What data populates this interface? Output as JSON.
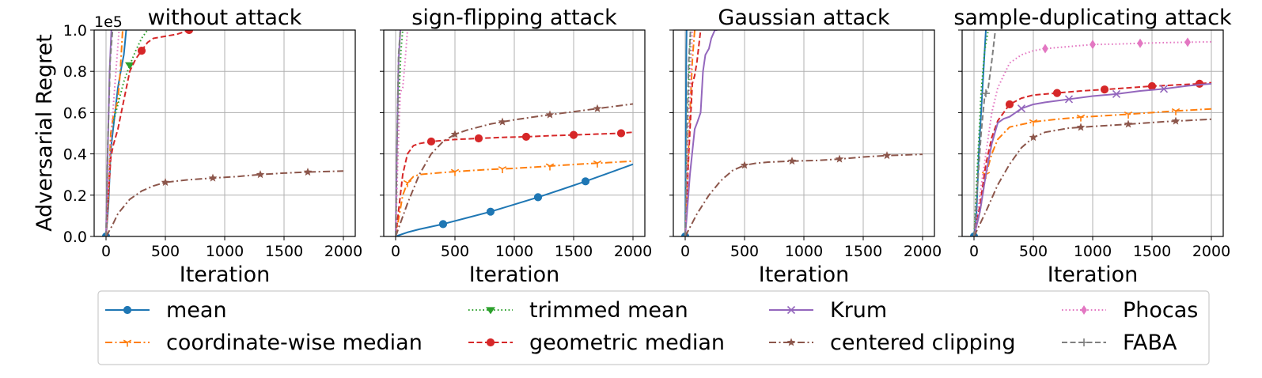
{
  "figure": {
    "ylabel": "Adversarial Regret",
    "xlabel": "Iteration",
    "y_multiplier": "1e5"
  },
  "legend": {
    "placement": "bottom",
    "entries": [
      {
        "label": "mean",
        "color": "#1f77b4",
        "dash": "solid",
        "marker": "circle"
      },
      {
        "label": "coordinate-wise median",
        "color": "#ff7f0e",
        "dash": "dashdot",
        "marker": "tri_down"
      },
      {
        "label": "trimmed mean",
        "color": "#2ca02c",
        "dash": "dotted",
        "marker": "triangle_down"
      },
      {
        "label": "geometric median",
        "color": "#d62728",
        "dash": "dashed",
        "marker": "circle"
      },
      {
        "label": "Krum",
        "color": "#9467bd",
        "dash": "solid",
        "marker": "x"
      },
      {
        "label": "centered clipping",
        "color": "#8c564b",
        "dash": "dashdot",
        "marker": "star"
      },
      {
        "label": "Phocas",
        "color": "#e377c2",
        "dash": "dotted",
        "marker": "diamond"
      },
      {
        "label": "FABA",
        "color": "#7f7f7f",
        "dash": "dashed",
        "marker": "plus"
      }
    ]
  },
  "chart_data": [
    {
      "type": "line",
      "title": "without attack",
      "xlabel": "Iteration",
      "ylabel": "Adversarial Regret",
      "xlim": [
        -100,
        2100
      ],
      "ylim": [
        0,
        1.0
      ],
      "xticks": [
        0,
        500,
        1000,
        1500,
        2000
      ],
      "yticks": [
        0.0,
        0.2,
        0.4,
        0.6,
        0.8,
        1.0
      ],
      "grid": true,
      "series": [
        {
          "name": "mean",
          "x": [
            0,
            20,
            40,
            60,
            80,
            100,
            130,
            150,
            170
          ],
          "y": [
            0,
            0.15,
            0.42,
            0.52,
            0.62,
            0.72,
            0.82,
            0.88,
            1.0
          ],
          "markers_x": [
            0
          ]
        },
        {
          "name": "coordinate-wise median",
          "x": [
            0,
            20,
            40,
            60,
            80,
            100,
            120,
            140
          ],
          "y": [
            0,
            0.2,
            0.5,
            0.58,
            0.62,
            0.66,
            0.8,
            1.0
          ],
          "markers_x": []
        },
        {
          "name": "trimmed mean",
          "x": [
            0,
            20,
            40,
            60,
            100,
            150,
            200,
            250,
            300,
            350
          ],
          "y": [
            0,
            0.18,
            0.45,
            0.55,
            0.64,
            0.75,
            0.83,
            0.9,
            0.96,
            1.0
          ],
          "markers_x": [
            200
          ]
        },
        {
          "name": "geometric median",
          "x": [
            0,
            20,
            40,
            60,
            100,
            150,
            200,
            250,
            300,
            350,
            400,
            500,
            600,
            700,
            720
          ],
          "y": [
            0,
            0.2,
            0.38,
            0.44,
            0.52,
            0.66,
            0.8,
            0.86,
            0.9,
            0.94,
            0.96,
            0.97,
            0.98,
            1.0,
            1.0
          ],
          "markers_x": [
            300,
            700
          ]
        },
        {
          "name": "Krum",
          "x": [
            0,
            10,
            30,
            45
          ],
          "y": [
            0,
            0.3,
            0.8,
            1.0
          ],
          "markers_x": []
        },
        {
          "name": "centered clipping",
          "x": [
            0,
            50,
            100,
            200,
            300,
            400,
            500,
            700,
            900,
            1100,
            1300,
            1500,
            1700,
            2000
          ],
          "y": [
            0,
            0.05,
            0.11,
            0.18,
            0.22,
            0.245,
            0.262,
            0.275,
            0.283,
            0.29,
            0.3,
            0.307,
            0.312,
            0.317
          ],
          "markers_x": [
            500,
            900,
            1300,
            1700
          ]
        },
        {
          "name": "Phocas",
          "x": [
            0,
            30,
            60,
            90,
            110
          ],
          "y": [
            0,
            0.35,
            0.62,
            0.85,
            1.0
          ],
          "markers_x": []
        },
        {
          "name": "FABA",
          "x": [
            0,
            15,
            35,
            55
          ],
          "y": [
            0,
            0.45,
            0.85,
            1.0
          ],
          "markers_x": []
        }
      ]
    },
    {
      "type": "line",
      "title": "sign-flipping attack",
      "xlabel": "Iteration",
      "ylabel": "",
      "xlim": [
        -100,
        2100
      ],
      "ylim": [
        0,
        1.0
      ],
      "xticks": [
        0,
        500,
        1000,
        1500,
        2000
      ],
      "yticks": [
        0.0,
        0.2,
        0.4,
        0.6,
        0.8,
        1.0
      ],
      "grid": true,
      "series": [
        {
          "name": "mean",
          "x": [
            0,
            100,
            200,
            400,
            600,
            800,
            1000,
            1200,
            1400,
            1600,
            1800,
            2000
          ],
          "y": [
            0,
            0.02,
            0.035,
            0.06,
            0.09,
            0.12,
            0.155,
            0.19,
            0.228,
            0.267,
            0.308,
            0.35
          ],
          "markers_x": [
            400,
            800,
            1200,
            1600
          ]
        },
        {
          "name": "coordinate-wise median",
          "x": [
            0,
            30,
            60,
            100,
            150,
            200,
            400,
            600,
            800,
            1000,
            1200,
            1400,
            1600,
            1800,
            2000
          ],
          "y": [
            0,
            0.1,
            0.2,
            0.26,
            0.29,
            0.3,
            0.31,
            0.318,
            0.325,
            0.33,
            0.337,
            0.345,
            0.352,
            0.358,
            0.365
          ],
          "markers_x": [
            100,
            500,
            900,
            1300,
            1700
          ]
        },
        {
          "name": "trimmed mean",
          "x": [
            0,
            15,
            30,
            45,
            60
          ],
          "y": [
            0,
            0.35,
            0.7,
            0.9,
            1.0
          ],
          "markers_x": []
        },
        {
          "name": "geometric median",
          "x": [
            0,
            30,
            60,
            100,
            150,
            200,
            300,
            500,
            700,
            900,
            1100,
            1300,
            1500,
            1700,
            1900,
            2000
          ],
          "y": [
            0,
            0.15,
            0.3,
            0.4,
            0.44,
            0.45,
            0.46,
            0.47,
            0.475,
            0.48,
            0.483,
            0.488,
            0.492,
            0.496,
            0.5,
            0.505
          ],
          "markers_x": [
            300,
            700,
            1100,
            1500,
            1900
          ]
        },
        {
          "name": "Krum",
          "x": [
            0,
            10,
            25,
            40
          ],
          "y": [
            0,
            0.4,
            0.85,
            1.0
          ],
          "markers_x": []
        },
        {
          "name": "centered clipping",
          "x": [
            0,
            50,
            100,
            200,
            300,
            400,
            500,
            600,
            800,
            1000,
            1200,
            1400,
            1600,
            1800,
            2000
          ],
          "y": [
            0,
            0.08,
            0.16,
            0.3,
            0.4,
            0.46,
            0.495,
            0.515,
            0.545,
            0.565,
            0.582,
            0.597,
            0.612,
            0.627,
            0.642
          ],
          "markers_x": [
            500,
            900,
            1300,
            1700
          ]
        },
        {
          "name": "Phocas",
          "x": [
            0,
            20,
            40,
            60,
            80,
            100
          ],
          "y": [
            0,
            0.4,
            0.7,
            0.72,
            0.85,
            1.0
          ],
          "markers_x": []
        },
        {
          "name": "FABA",
          "x": [
            0,
            12,
            25,
            40
          ],
          "y": [
            0,
            0.45,
            0.88,
            1.0
          ],
          "markers_x": []
        }
      ]
    },
    {
      "type": "line",
      "title": "Gaussian attack",
      "xlabel": "Iteration",
      "ylabel": "",
      "xlim": [
        -100,
        2100
      ],
      "ylim": [
        0,
        1.0
      ],
      "xticks": [
        0,
        500,
        1000,
        1500,
        2000
      ],
      "yticks": [
        0.0,
        0.2,
        0.4,
        0.6,
        0.8,
        1.0
      ],
      "grid": true,
      "series": [
        {
          "name": "mean",
          "x": [
            0,
            4,
            8,
            12
          ],
          "y": [
            0,
            0.4,
            0.8,
            1.0
          ],
          "markers_x": [
            0
          ]
        },
        {
          "name": "coordinate-wise median",
          "x": [
            0,
            20,
            40,
            60,
            80
          ],
          "y": [
            0,
            0.3,
            0.6,
            0.85,
            1.0
          ],
          "markers_x": []
        },
        {
          "name": "trimmed mean",
          "x": [
            0,
            15,
            30,
            45
          ],
          "y": [
            0,
            0.35,
            0.75,
            1.0
          ],
          "markers_x": []
        },
        {
          "name": "geometric median",
          "x": [
            0,
            30,
            60,
            80,
            100,
            130
          ],
          "y": [
            0,
            0.4,
            0.74,
            0.78,
            0.85,
            1.0
          ],
          "markers_x": []
        },
        {
          "name": "Krum",
          "x": [
            0,
            40,
            80,
            100,
            130,
            150,
            170,
            200,
            220,
            250,
            270
          ],
          "y": [
            0,
            0.3,
            0.52,
            0.55,
            0.6,
            0.8,
            0.88,
            0.91,
            0.96,
            1.0,
            1.0
          ],
          "markers_x": []
        },
        {
          "name": "centered clipping",
          "x": [
            0,
            100,
            200,
            300,
            400,
            500,
            600,
            700,
            900,
            1100,
            1300,
            1500,
            1700,
            1900,
            2000
          ],
          "y": [
            0,
            0.11,
            0.2,
            0.27,
            0.32,
            0.345,
            0.355,
            0.36,
            0.365,
            0.368,
            0.375,
            0.385,
            0.392,
            0.396,
            0.398
          ],
          "markers_x": [
            500,
            900,
            1300,
            1700
          ]
        },
        {
          "name": "Phocas",
          "x": [
            0,
            20,
            40,
            60
          ],
          "y": [
            0,
            0.35,
            0.7,
            1.0
          ],
          "markers_x": []
        },
        {
          "name": "FABA",
          "x": [
            0,
            15,
            30,
            45
          ],
          "y": [
            0,
            0.5,
            0.85,
            1.0
          ],
          "markers_x": []
        }
      ]
    },
    {
      "type": "line",
      "title": "sample-duplicating attack",
      "xlabel": "Iteration",
      "ylabel": "",
      "xlim": [
        -100,
        2100
      ],
      "ylim": [
        0,
        1.0
      ],
      "xticks": [
        0,
        500,
        1000,
        1500,
        2000
      ],
      "yticks": [
        0.0,
        0.2,
        0.4,
        0.6,
        0.8,
        1.0
      ],
      "grid": true,
      "series": [
        {
          "name": "mean",
          "x": [
            0,
            20,
            40,
            60,
            80,
            100
          ],
          "y": [
            0,
            0.1,
            0.4,
            0.6,
            0.8,
            1.0
          ],
          "markers_x": [
            0
          ]
        },
        {
          "name": "coordinate-wise median",
          "x": [
            0,
            50,
            100,
            150,
            200,
            300,
            500,
            700,
            900,
            1100,
            1300,
            1500,
            1700,
            2000
          ],
          "y": [
            0,
            0.12,
            0.3,
            0.4,
            0.47,
            0.53,
            0.555,
            0.568,
            0.578,
            0.585,
            0.592,
            0.6,
            0.608,
            0.618
          ],
          "markers_x": [
            100,
            500,
            900,
            1300,
            1700
          ]
        },
        {
          "name": "trimmed mean",
          "x": [
            0,
            30,
            60,
            90,
            120
          ],
          "y": [
            0,
            0.35,
            0.7,
            0.9,
            1.0
          ],
          "markers_x": []
        },
        {
          "name": "geometric median",
          "x": [
            0,
            50,
            100,
            150,
            200,
            300,
            400,
            500,
            700,
            900,
            1100,
            1300,
            1500,
            1700,
            1900,
            2000
          ],
          "y": [
            0,
            0.15,
            0.35,
            0.48,
            0.56,
            0.64,
            0.67,
            0.685,
            0.695,
            0.705,
            0.712,
            0.72,
            0.728,
            0.734,
            0.74,
            0.745
          ],
          "markers_x": [
            300,
            700,
            1100,
            1500,
            1900
          ]
        },
        {
          "name": "Krum",
          "x": [
            0,
            50,
            100,
            150,
            200,
            250,
            300,
            350,
            400,
            500,
            600,
            800,
            1000,
            1200,
            1400,
            1600,
            1800,
            2000
          ],
          "y": [
            0,
            0.12,
            0.3,
            0.45,
            0.55,
            0.57,
            0.58,
            0.6,
            0.62,
            0.64,
            0.65,
            0.665,
            0.68,
            0.69,
            0.705,
            0.715,
            0.73,
            0.74
          ],
          "markers_x": [
            400,
            800,
            1200,
            1600
          ]
        },
        {
          "name": "centered clipping",
          "x": [
            0,
            100,
            200,
            300,
            400,
            500,
            600,
            800,
            1000,
            1200,
            1400,
            1600,
            1800,
            2000
          ],
          "y": [
            0,
            0.12,
            0.25,
            0.35,
            0.43,
            0.48,
            0.505,
            0.525,
            0.533,
            0.54,
            0.548,
            0.556,
            0.562,
            0.568
          ],
          "markers_x": [
            500,
            900,
            1300,
            1700
          ]
        },
        {
          "name": "Phocas",
          "x": [
            0,
            100,
            150,
            200,
            300,
            400,
            500,
            600,
            800,
            1000,
            1200,
            1400,
            1600,
            1800,
            2000
          ],
          "y": [
            0,
            0.4,
            0.6,
            0.72,
            0.84,
            0.88,
            0.9,
            0.91,
            0.92,
            0.93,
            0.932,
            0.936,
            0.939,
            0.941,
            0.943
          ],
          "markers_x": [
            600,
            1000,
            1400,
            1800
          ]
        },
        {
          "name": "FABA",
          "x": [
            0,
            30,
            60,
            90,
            120,
            150,
            180
          ],
          "y": [
            0,
            0.25,
            0.5,
            0.68,
            0.72,
            0.85,
            1.0
          ],
          "markers_x": [
            100
          ]
        }
      ]
    }
  ]
}
